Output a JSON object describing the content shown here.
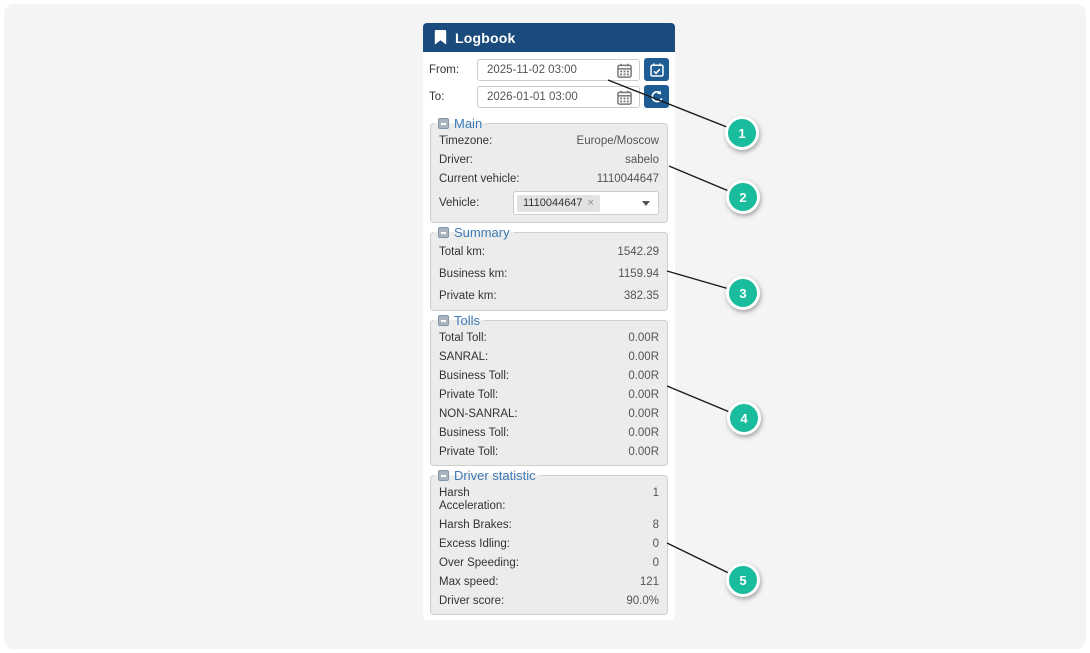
{
  "panel": {
    "title": "Logbook",
    "from_label": "From:",
    "from_value": "2025-11-02 03:00",
    "to_label": "To:",
    "to_value": "2026-01-01 03:00"
  },
  "sections": {
    "main": {
      "legend": "Main",
      "rows": [
        {
          "label": "Timezone:",
          "value": "Europe/Moscow"
        },
        {
          "label": "Driver:",
          "value": "sabelo"
        },
        {
          "label": "Current vehicle:",
          "value": "1110044647"
        }
      ],
      "vehicle_label": "Vehicle:",
      "vehicle_tag": "1110044647",
      "vehicle_tag_remove": "×"
    },
    "summary": {
      "legend": "Summary",
      "rows": [
        {
          "label": "Total km:",
          "value": "1542.29"
        },
        {
          "label": "Business km:",
          "value": "1159.94"
        },
        {
          "label": "Private km:",
          "value": "382.35"
        }
      ]
    },
    "tolls": {
      "legend": "Tolls",
      "rows": [
        {
          "label": "Total Toll:",
          "value": "0.00R"
        },
        {
          "label": "SANRAL:",
          "value": "0.00R"
        },
        {
          "label": "Business Toll:",
          "value": "0.00R"
        },
        {
          "label": "Private Toll:",
          "value": "0.00R"
        },
        {
          "label": "NON-SANRAL:",
          "value": "0.00R"
        },
        {
          "label": "Business Toll:",
          "value": "0.00R"
        },
        {
          "label": "Private Toll:",
          "value": "0.00R"
        }
      ]
    },
    "driver_statistic": {
      "legend": "Driver statistic",
      "rows": [
        {
          "label": "Harsh Acceleration:",
          "value": "1"
        },
        {
          "label": "Harsh Brakes:",
          "value": "8"
        },
        {
          "label": "Excess Idling:",
          "value": "0"
        },
        {
          "label": "Over Speeding:",
          "value": "0"
        },
        {
          "label": "Max speed:",
          "value": "121"
        },
        {
          "label": "Driver score:",
          "value": "90.0%"
        }
      ]
    }
  },
  "callouts": [
    "1",
    "2",
    "3",
    "4",
    "5"
  ],
  "colors": {
    "header_bg": "#1a4b7c",
    "button_bg": "#1e5c94",
    "legend_blue": "#3d7ab5",
    "callout_teal": "#19bc9c",
    "section_bg": "#ececec"
  }
}
